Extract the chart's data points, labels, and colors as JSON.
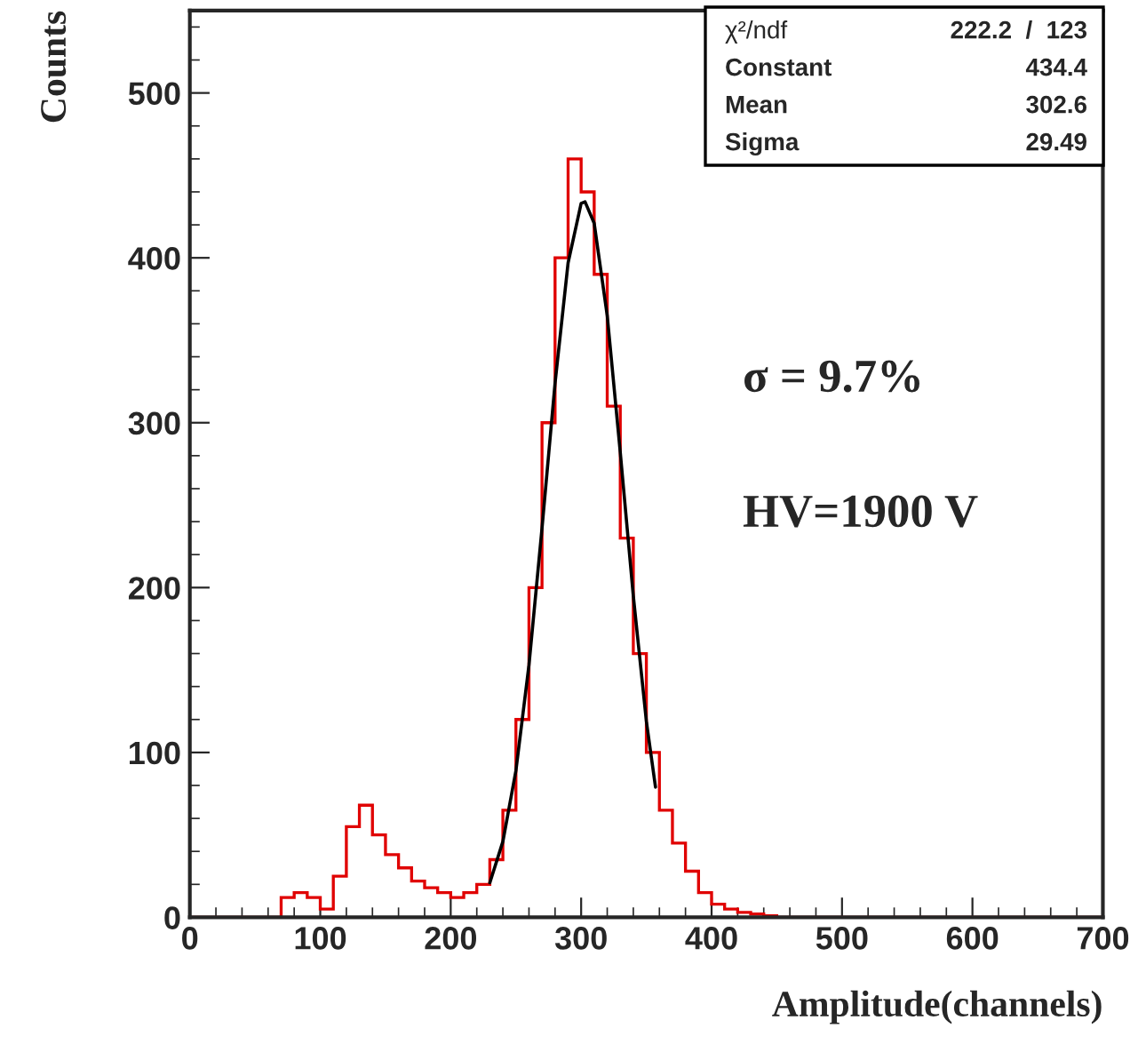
{
  "chart_data": {
    "type": "histogram",
    "xlabel": "Amplitude(channels)",
    "ylabel": "Counts",
    "bins": [
      0,
      10,
      20,
      30,
      40,
      50,
      60,
      70,
      80,
      90,
      100,
      110,
      120,
      130,
      140,
      150,
      160,
      170,
      180,
      190,
      200,
      210,
      220,
      230,
      240,
      250,
      260,
      270,
      280,
      290,
      300,
      310,
      320,
      330,
      340,
      350,
      360,
      370,
      380,
      390,
      400,
      410,
      420,
      430,
      440,
      450,
      460,
      470,
      480,
      490,
      500,
      510,
      520,
      530,
      540,
      550,
      560,
      570,
      580,
      590,
      600,
      610,
      620,
      630,
      640,
      650,
      660,
      670,
      680,
      690,
      700
    ],
    "values": [
      0,
      0,
      0,
      0,
      0,
      0,
      0,
      12,
      15,
      12,
      5,
      25,
      55,
      68,
      50,
      38,
      30,
      22,
      18,
      15,
      12,
      15,
      20,
      35,
      65,
      120,
      200,
      300,
      400,
      460,
      440,
      390,
      310,
      230,
      160,
      100,
      65,
      45,
      28,
      15,
      8,
      5,
      3,
      2,
      1,
      0,
      0,
      0,
      0,
      0,
      0,
      0,
      0,
      0,
      0,
      0,
      0,
      0,
      0,
      0,
      0,
      0,
      0,
      0,
      0,
      0,
      0,
      0,
      0,
      0
    ],
    "color": "#e00000",
    "series": [
      {
        "type": "line",
        "color": "#000000",
        "x": [
          230,
          240,
          250,
          260,
          270,
          280,
          290,
          300,
          303,
          310,
          320,
          330,
          340,
          350,
          357
        ],
        "values": [
          21,
          46,
          89,
          153,
          236,
          324,
          397,
          433,
          434,
          421,
          365,
          282,
          195,
          119,
          79
        ]
      }
    ],
    "xlim": [
      0,
      700
    ],
    "ylim": [
      0,
      550
    ],
    "xticks": [
      0,
      100,
      200,
      300,
      400,
      500,
      600,
      700
    ],
    "yticks": [
      0,
      100,
      200,
      300,
      400,
      500
    ],
    "grid": false,
    "annotations": [
      "σ = 9.7%",
      "HV=1900 V",
      "χ²/ndf",
      "222.2  /  123",
      "Constant",
      "434.4",
      "Mean",
      "302.6",
      "Sigma",
      "29.49"
    ]
  }
}
